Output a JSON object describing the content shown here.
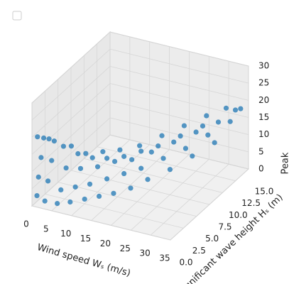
{
  "chart_data": {
    "type": "scatter3d",
    "xlabel": "Wind speed Wₛ (m/s)",
    "ylabel": "Significant wave height Hₛ (m)",
    "zlabel": "Peak",
    "color": "#1f77b4",
    "grid": true,
    "xlim": [
      0,
      35
    ],
    "xticks": [
      0,
      5,
      10,
      15,
      20,
      25,
      30,
      35
    ],
    "ylim": [
      0,
      15
    ],
    "yticks": [
      {
        "value": 0,
        "label": "0.0"
      },
      {
        "value": 2.5,
        "label": "2.5"
      },
      {
        "value": 5,
        "label": "5.0"
      },
      {
        "value": 7.5,
        "label": "7.5"
      },
      {
        "value": 10,
        "label": "10.0"
      },
      {
        "value": 12.5,
        "label": "12.5"
      },
      {
        "value": 15,
        "label": "15.0"
      }
    ],
    "zlim": [
      0,
      30
    ],
    "zticks": [
      0,
      5,
      10,
      15,
      20,
      25,
      30
    ],
    "x": [
      1,
      1,
      1,
      1,
      1,
      3,
      3,
      3,
      3,
      3,
      6,
      6,
      6,
      6,
      6,
      9,
      9,
      9,
      9,
      9,
      12,
      12,
      12,
      12,
      12,
      15,
      15,
      15,
      15,
      15,
      18,
      18,
      18,
      18,
      18,
      21,
      21,
      21,
      21,
      21,
      24,
      24,
      24,
      24,
      24,
      27,
      27,
      27,
      27,
      27,
      30,
      30,
      30,
      30,
      30,
      33,
      33,
      33,
      33
    ],
    "y": [
      0.2,
      0.5,
      1,
      1.5,
      0.3,
      0.2,
      0.8,
      1.5,
      2,
      1,
      0.3,
      1,
      2,
      3,
      1.5,
      0.5,
      1.5,
      2.5,
      3.5,
      2,
      1,
      2,
      3.5,
      4.5,
      2.5,
      1.5,
      3,
      4.5,
      5.5,
      3,
      2,
      4,
      5.5,
      7,
      4,
      3,
      5,
      7,
      9,
      5,
      4,
      7,
      9,
      11,
      6,
      6,
      9,
      11,
      13,
      8,
      8,
      11,
      13,
      14.5,
      10,
      10,
      13,
      15,
      14
    ],
    "z": [
      3,
      8,
      13,
      18,
      20,
      2,
      7,
      12,
      17,
      19,
      2,
      5,
      10,
      15,
      17,
      3,
      6,
      10,
      13,
      15,
      4,
      7,
      10,
      13,
      14,
      5,
      8,
      11,
      13,
      14,
      6,
      9,
      11,
      13,
      14,
      7,
      10,
      12,
      14,
      15,
      9,
      11,
      13,
      15,
      16,
      10,
      12,
      14,
      16,
      17,
      12,
      14,
      15,
      17,
      18,
      14,
      16,
      17,
      18
    ]
  }
}
